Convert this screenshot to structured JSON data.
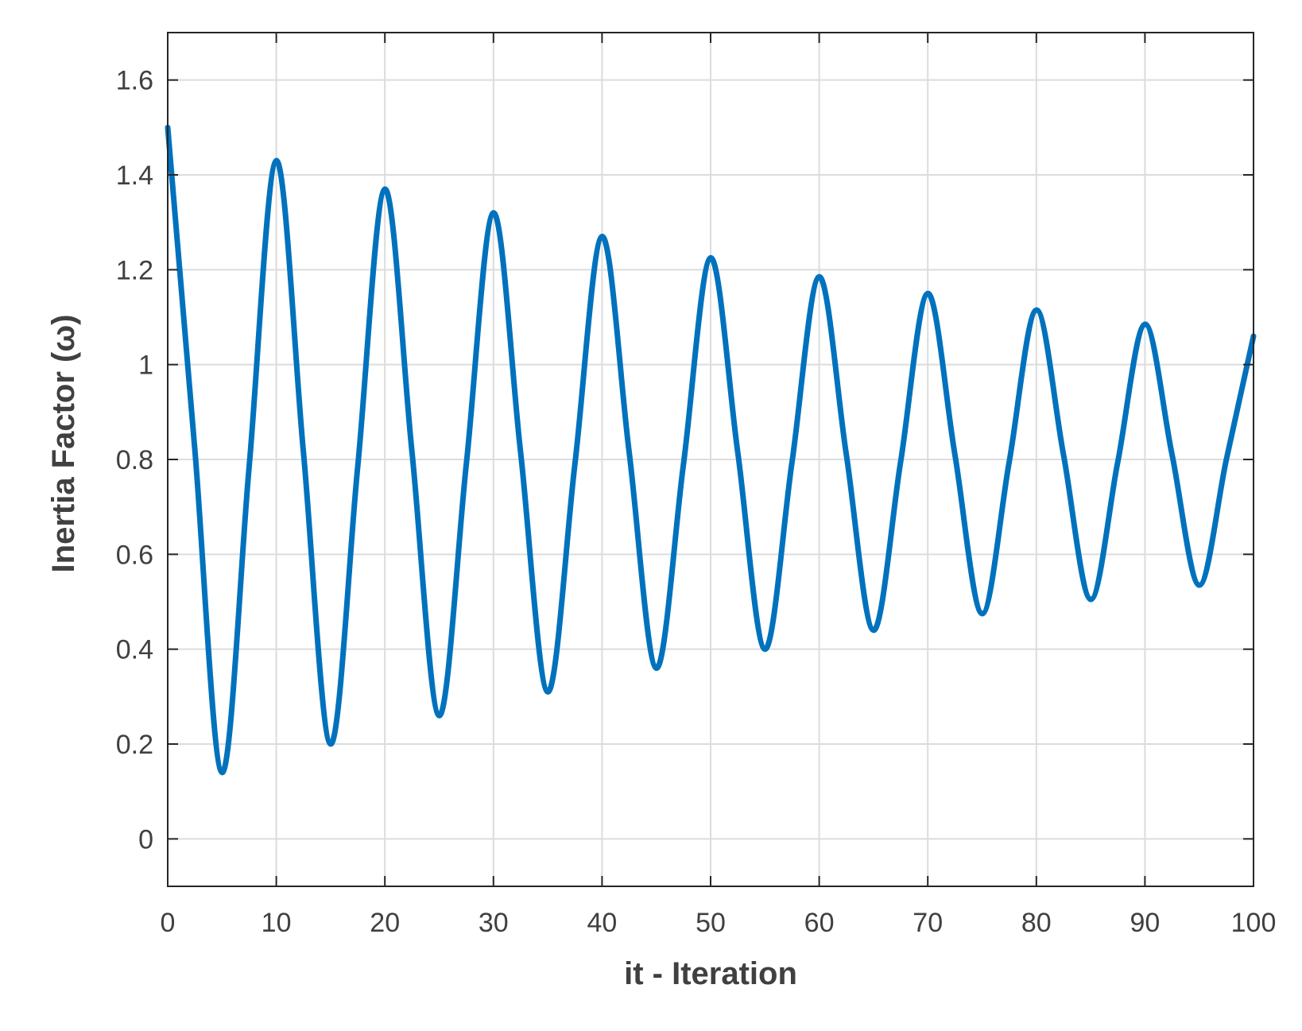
{
  "chart_data": {
    "type": "line",
    "xlabel": "it - Iteration",
    "ylabel": "Inertia Factor (ω)",
    "xlim": [
      0,
      100
    ],
    "ylim": [
      -0.1,
      1.7
    ],
    "xticks": [
      0,
      10,
      20,
      30,
      40,
      50,
      60,
      70,
      80,
      90,
      100
    ],
    "yticks": [
      0,
      0.2,
      0.4,
      0.6,
      0.8,
      1,
      1.2,
      1.4,
      1.6
    ],
    "xtick_labels": [
      "0",
      "10",
      "20",
      "30",
      "40",
      "50",
      "60",
      "70",
      "80",
      "90",
      "100"
    ],
    "ytick_labels": [
      "0",
      "0.2",
      "0.4",
      "0.6",
      "0.8",
      "1",
      "1.2",
      "1.4",
      "1.6"
    ],
    "grid": true,
    "line_color": "#0072BD",
    "series": [
      {
        "x": [
          0,
          2.5,
          5,
          7.5,
          10,
          12.5,
          15,
          17.5,
          20,
          22.5,
          25,
          27.5,
          30,
          32.5,
          35,
          37.5,
          40,
          42.5,
          45,
          47.5,
          50,
          52.5,
          55,
          57.5,
          60,
          62.5,
          65,
          67.5,
          70,
          72.5,
          75,
          77.5,
          80,
          82.5,
          85,
          87.5,
          90,
          92.5,
          95,
          97.5,
          100
        ],
        "y": [
          1.5,
          0.82,
          0.14,
          0.785,
          1.43,
          0.815,
          0.2,
          0.785,
          1.37,
          0.815,
          0.26,
          0.79,
          1.32,
          0.815,
          0.31,
          0.79,
          1.27,
          0.815,
          0.36,
          0.79,
          1.225,
          0.815,
          0.4,
          0.795,
          1.185,
          0.81,
          0.44,
          0.795,
          1.15,
          0.81,
          0.475,
          0.795,
          1.115,
          0.81,
          0.505,
          0.795,
          1.085,
          0.81,
          0.535,
          0.8,
          1.06
        ]
      }
    ]
  }
}
